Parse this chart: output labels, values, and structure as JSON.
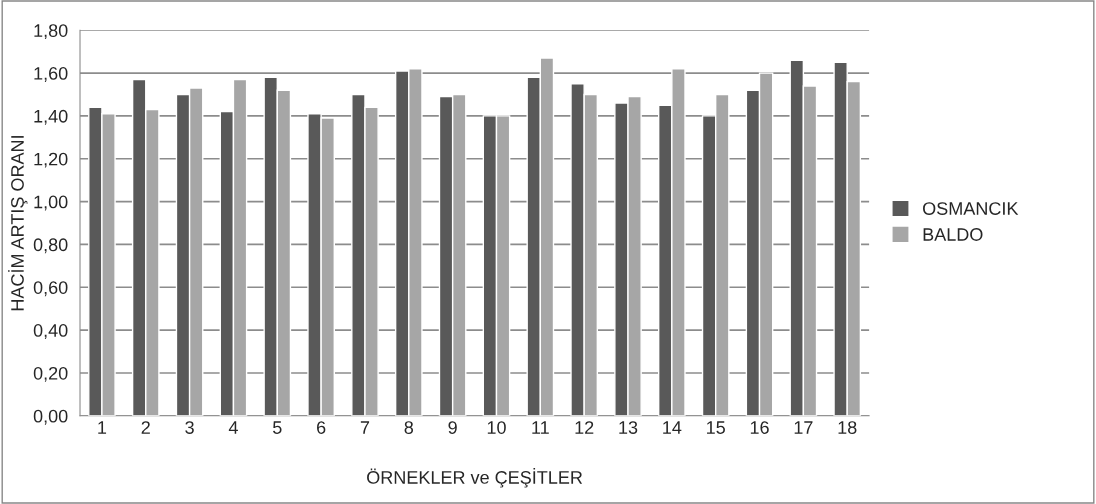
{
  "chart_data": {
    "type": "bar",
    "xlabel": "ÖRNEKLER ve ÇEŞİTLER",
    "ylabel": "HACİM ARTIŞ ORANI",
    "categories": [
      "1",
      "2",
      "3",
      "4",
      "5",
      "6",
      "7",
      "8",
      "9",
      "10",
      "11",
      "12",
      "13",
      "14",
      "15",
      "16",
      "17",
      "18"
    ],
    "series": [
      {
        "name": "OSMANCIK",
        "color": "#595959",
        "values": [
          1.44,
          1.57,
          1.5,
          1.42,
          1.58,
          1.41,
          1.5,
          1.61,
          1.49,
          1.4,
          1.58,
          1.55,
          1.46,
          1.45,
          1.4,
          1.52,
          1.66,
          1.65
        ]
      },
      {
        "name": "BALDO",
        "color": "#a6a6a6",
        "values": [
          1.41,
          1.43,
          1.53,
          1.57,
          1.52,
          1.39,
          1.44,
          1.62,
          1.5,
          1.4,
          1.67,
          1.5,
          1.49,
          1.62,
          1.5,
          1.6,
          1.54,
          1.56
        ]
      }
    ],
    "ylim": [
      0,
      1.8
    ],
    "yticks": [
      {
        "value": 0,
        "label": "0,00"
      },
      {
        "value": 0.2,
        "label": "0,20"
      },
      {
        "value": 0.4,
        "label": "0,40"
      },
      {
        "value": 0.6,
        "label": "0,60"
      },
      {
        "value": 0.8,
        "label": "0,80"
      },
      {
        "value": 1.0,
        "label": "1,00"
      },
      {
        "value": 1.2,
        "label": "1,20"
      },
      {
        "value": 1.4,
        "label": "1,40"
      },
      {
        "value": 1.6,
        "label": "1,60"
      },
      {
        "value": 1.8,
        "label": "1,80"
      }
    ],
    "grid": "y",
    "legend": "right"
  }
}
